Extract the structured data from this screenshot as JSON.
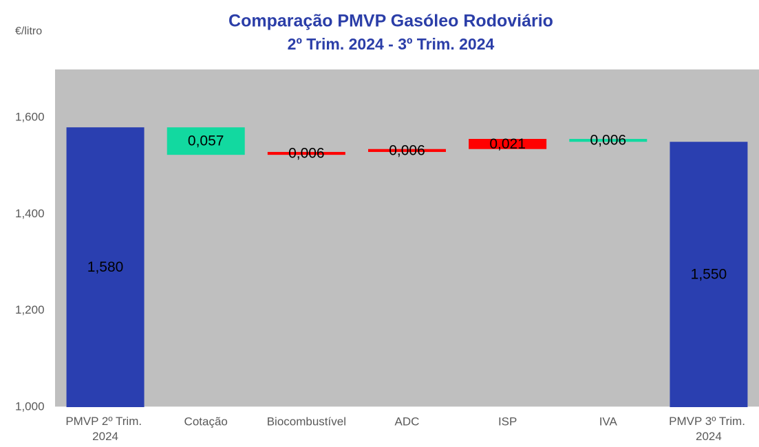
{
  "chart_data": {
    "type": "waterfall",
    "title": "Comparação PMVP Gasóleo Rodoviário",
    "subtitle": "2º Trim. 2024 - 3º Trim. 2024",
    "y_label": "€/litro",
    "categories": [
      "PMVP 2º Trim. 2024",
      "Cotação",
      "Biocombustível",
      "ADC",
      "ISP",
      "IVA",
      "PMVP 3º Trim. 2024"
    ],
    "measure": [
      "absolute",
      "relative",
      "relative",
      "relative",
      "relative",
      "relative",
      "absolute"
    ],
    "values": [
      1.58,
      -0.057,
      0.006,
      0.006,
      0.021,
      -0.006,
      1.55
    ],
    "value_labels": [
      "1,580",
      "0,057",
      "0,006",
      "0,006",
      "0,021",
      "0,006",
      "1,550"
    ],
    "total_color": "#2a3fb0",
    "increase_color": "#ff0000",
    "decrease_color": "#12d9a0",
    "plot_background": "#bfbfbf",
    "ylim": [
      1.0,
      1.7
    ],
    "yticks": [
      {
        "value": 1.0,
        "label": "1,000"
      },
      {
        "value": 1.2,
        "label": "1,200"
      },
      {
        "value": 1.4,
        "label": "1,400"
      },
      {
        "value": 1.6,
        "label": "1,600"
      }
    ]
  }
}
